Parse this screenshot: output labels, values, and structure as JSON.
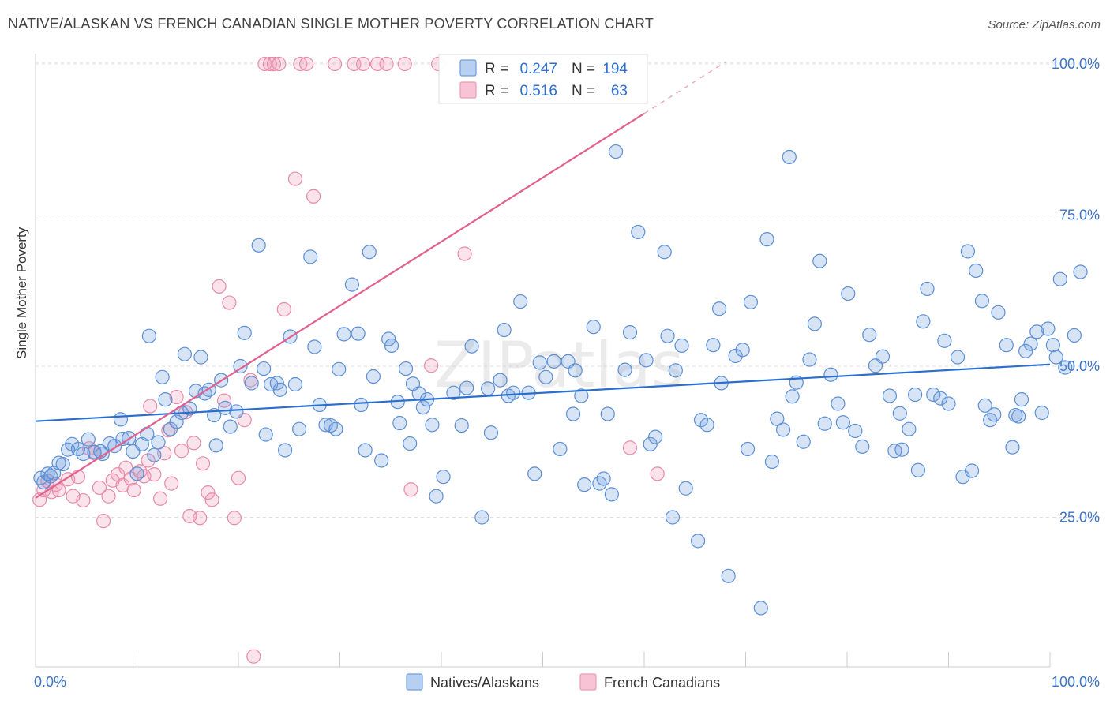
{
  "title": "NATIVE/ALASKAN VS FRENCH CANADIAN SINGLE MOTHER POVERTY CORRELATION CHART",
  "source": "Source: ZipAtlas.com",
  "watermark": "ZIPatlas",
  "chart_data": {
    "type": "scatter",
    "title": "NATIVE/ALASKAN VS FRENCH CANADIAN SINGLE MOTHER POVERTY CORRELATION CHART",
    "xlabel": "",
    "ylabel": "Single Mother Poverty",
    "xlim": [
      0,
      100
    ],
    "ylim": [
      0,
      100
    ],
    "x_tick_labels": [
      "0.0%",
      "100.0%"
    ],
    "y_ticks": [
      25,
      50,
      75,
      100
    ],
    "y_tick_labels": [
      "25.0%",
      "50.0%",
      "75.0%",
      "100.0%"
    ],
    "grid": true,
    "legend_position": "top-center",
    "colors": {
      "blue": "#6f9fdc",
      "blue_line": "#2a6fd0",
      "pink": "#ee9ab5",
      "pink_line": "#e0608e",
      "stat_value": "#2f6fd0"
    },
    "stats": [
      {
        "r_label": "R =",
        "r_value": "0.247",
        "n_label": "N =",
        "n_value": "194"
      },
      {
        "r_label": "R =",
        "r_value": "0.516",
        "n_label": "N =",
        "n_value": "63"
      }
    ],
    "series": [
      {
        "name": "Natives/Alaskans",
        "color": "#6f9fdc",
        "trend": {
          "x0": 0,
          "y0": 40.9,
          "x1": 100,
          "y1": 50.3
        },
        "points": [
          [
            0.5,
            31.5
          ],
          [
            0.8,
            30.8
          ],
          [
            1.2,
            32.2
          ],
          [
            1.5,
            31.8
          ],
          [
            1.8,
            32.3
          ],
          [
            2.3,
            34
          ],
          [
            2.7,
            33.8
          ],
          [
            3.2,
            36.2
          ],
          [
            3.6,
            37.1
          ],
          [
            4.2,
            36.3
          ],
          [
            4.7,
            35.5
          ],
          [
            5.2,
            37.9
          ],
          [
            5.8,
            35.8
          ],
          [
            6.4,
            35.9
          ],
          [
            6.6,
            35.5
          ],
          [
            7.3,
            37.2
          ],
          [
            7.8,
            36.8
          ],
          [
            8.4,
            41.2
          ],
          [
            8.6,
            38
          ],
          [
            9.2,
            38.1
          ],
          [
            9.6,
            35.9
          ],
          [
            10,
            32.2
          ],
          [
            10.5,
            37.1
          ],
          [
            11,
            38.8
          ],
          [
            11.2,
            55
          ],
          [
            11.7,
            35.3
          ],
          [
            12.1,
            37.4
          ],
          [
            12.5,
            48.2
          ],
          [
            12.8,
            44.5
          ],
          [
            13.3,
            39.6
          ],
          [
            13.9,
            40.8
          ],
          [
            14.4,
            42.3
          ],
          [
            14.7,
            52
          ],
          [
            15.2,
            43
          ],
          [
            15.8,
            45.9
          ],
          [
            16.3,
            51.5
          ],
          [
            16.7,
            45.5
          ],
          [
            17.1,
            46.1
          ],
          [
            17.6,
            41.9
          ],
          [
            17.8,
            36.9
          ],
          [
            18.3,
            47.7
          ],
          [
            18.7,
            43.1
          ],
          [
            19.2,
            40
          ],
          [
            19.8,
            42.5
          ],
          [
            20.2,
            50
          ],
          [
            20.6,
            55.5
          ],
          [
            21.3,
            47.2
          ],
          [
            22,
            70
          ],
          [
            22.5,
            49.6
          ],
          [
            22.7,
            38.7
          ],
          [
            23.2,
            47
          ],
          [
            23.8,
            47.2
          ],
          [
            24.1,
            46.1
          ],
          [
            24.6,
            36.1
          ],
          [
            25.1,
            54.9
          ],
          [
            25.6,
            47
          ],
          [
            26,
            39.6
          ],
          [
            27.1,
            68.1
          ],
          [
            27.5,
            53.2
          ],
          [
            28,
            43.6
          ],
          [
            28.6,
            40.3
          ],
          [
            29.1,
            40.2
          ],
          [
            29.6,
            39.6
          ],
          [
            29.9,
            49.5
          ],
          [
            30.4,
            55.3
          ],
          [
            31.2,
            63.5
          ],
          [
            31.8,
            55.4
          ],
          [
            32.1,
            43.6
          ],
          [
            32.5,
            36.1
          ],
          [
            32.9,
            68.9
          ],
          [
            33.3,
            48.3
          ],
          [
            34.1,
            34.4
          ],
          [
            34.8,
            54.5
          ],
          [
            35.1,
            53.4
          ],
          [
            35.7,
            44.1
          ],
          [
            35.9,
            40.6
          ],
          [
            36.5,
            49.6
          ],
          [
            36.9,
            37.2
          ],
          [
            37.2,
            47.1
          ],
          [
            37.8,
            45.5
          ],
          [
            38.2,
            43.2
          ],
          [
            38.6,
            44.5
          ],
          [
            39.1,
            40.3
          ],
          [
            39.5,
            28.5
          ],
          [
            40.2,
            31.7
          ],
          [
            41.2,
            45.6
          ],
          [
            42,
            40.2
          ],
          [
            42.5,
            46.4
          ],
          [
            43,
            53.3
          ],
          [
            44,
            25
          ],
          [
            44.6,
            46.3
          ],
          [
            44.9,
            39
          ],
          [
            45.8,
            47.7
          ],
          [
            46.2,
            56
          ],
          [
            46.6,
            45.1
          ],
          [
            47.1,
            45.6
          ],
          [
            47.8,
            60.7
          ],
          [
            48.6,
            45.6
          ],
          [
            49.2,
            32.2
          ],
          [
            49.7,
            50.6
          ],
          [
            50.3,
            48.2
          ],
          [
            51.1,
            50.8
          ],
          [
            51.7,
            36.3
          ],
          [
            52.5,
            50.8
          ],
          [
            53,
            42.1
          ],
          [
            53.2,
            49.3
          ],
          [
            53.8,
            45.1
          ],
          [
            54.1,
            30.4
          ],
          [
            55,
            56.5
          ],
          [
            55.6,
            30.6
          ],
          [
            56,
            31.4
          ],
          [
            56.4,
            42.1
          ],
          [
            56.8,
            28.8
          ],
          [
            57.2,
            85.5
          ],
          [
            58.1,
            49.4
          ],
          [
            58.6,
            55.6
          ],
          [
            59.4,
            72.2
          ],
          [
            60.2,
            51
          ],
          [
            60.6,
            37.1
          ],
          [
            61.1,
            38.3
          ],
          [
            62,
            68.9
          ],
          [
            62.3,
            55
          ],
          [
            62.8,
            25
          ],
          [
            63.1,
            49.3
          ],
          [
            63.7,
            53.4
          ],
          [
            64.1,
            29.8
          ],
          [
            65.3,
            21.1
          ],
          [
            65.6,
            41.1
          ],
          [
            66.2,
            40.3
          ],
          [
            66.8,
            53.5
          ],
          [
            67.4,
            59.5
          ],
          [
            67.6,
            47.2
          ],
          [
            68.3,
            15.3
          ],
          [
            69,
            51.7
          ],
          [
            69.7,
            52.7
          ],
          [
            70.2,
            36.3
          ],
          [
            70.5,
            60.6
          ],
          [
            71.5,
            10
          ],
          [
            72.1,
            71
          ],
          [
            72.6,
            34.2
          ],
          [
            73.1,
            41.3
          ],
          [
            73.7,
            39.5
          ],
          [
            74.3,
            84.6
          ],
          [
            74.6,
            45
          ],
          [
            75,
            47.3
          ],
          [
            75.7,
            37.5
          ],
          [
            76.3,
            51.1
          ],
          [
            76.8,
            57
          ],
          [
            77.3,
            67.4
          ],
          [
            77.8,
            40.5
          ],
          [
            78.4,
            48.6
          ],
          [
            79.1,
            43.8
          ],
          [
            79.6,
            40.7
          ],
          [
            80.1,
            62
          ],
          [
            80.8,
            39.3
          ],
          [
            81.5,
            36.7
          ],
          [
            82.2,
            55.2
          ],
          [
            82.8,
            50.1
          ],
          [
            83.5,
            51.6
          ],
          [
            84.2,
            45.1
          ],
          [
            84.7,
            36
          ],
          [
            85.2,
            42.2
          ],
          [
            85.4,
            36.2
          ],
          [
            86.1,
            39.6
          ],
          [
            86.7,
            45.3
          ],
          [
            87,
            32.8
          ],
          [
            87.5,
            57.4
          ],
          [
            87.9,
            62.8
          ],
          [
            88.5,
            45.3
          ],
          [
            89.2,
            44.7
          ],
          [
            89.6,
            54.2
          ],
          [
            90,
            43.8
          ],
          [
            90.9,
            51.5
          ],
          [
            91.4,
            31.7
          ],
          [
            91.9,
            69
          ],
          [
            92.3,
            32.7
          ],
          [
            92.7,
            65.8
          ],
          [
            93.3,
            60.8
          ],
          [
            93.6,
            43.5
          ],
          [
            94.1,
            41.1
          ],
          [
            94.5,
            42
          ],
          [
            94.9,
            58.9
          ],
          [
            95.7,
            53.5
          ],
          [
            96.3,
            36.6
          ],
          [
            96.6,
            41.9
          ],
          [
            96.9,
            41.7
          ],
          [
            97.2,
            44.5
          ],
          [
            97.6,
            52.5
          ],
          [
            98.1,
            53.7
          ],
          [
            98.7,
            55.7
          ],
          [
            99.2,
            42.3
          ],
          [
            99.8,
            56.2
          ],
          [
            100.3,
            53.5
          ],
          [
            100.6,
            51.5
          ],
          [
            101,
            64.4
          ],
          [
            101.5,
            49.8
          ],
          [
            102.4,
            55.1
          ],
          [
            103,
            65.6
          ]
        ]
      },
      {
        "name": "French Canadians",
        "color": "#ee9ab5",
        "trend": {
          "x0": 0,
          "y0": 28.2,
          "x1": 60,
          "y1": 91.8
        },
        "trend_dashed": {
          "x0": 60,
          "y0": 91.8,
          "x1": 68,
          "y1": 100.3
        },
        "points": [
          [
            0.4,
            27.9
          ],
          [
            0.8,
            29.5
          ],
          [
            1.2,
            31
          ],
          [
            1.6,
            29.2
          ],
          [
            2,
            30.4
          ],
          [
            2.3,
            29.5
          ],
          [
            3.2,
            31.3
          ],
          [
            3.7,
            28.5
          ],
          [
            4.2,
            31.7
          ],
          [
            4.7,
            27.8
          ],
          [
            5.3,
            36.4
          ],
          [
            5.8,
            35.6
          ],
          [
            6.3,
            29.9
          ],
          [
            6.7,
            24.4
          ],
          [
            7.2,
            28.5
          ],
          [
            7.6,
            31.1
          ],
          [
            8.1,
            32.1
          ],
          [
            8.6,
            30.3
          ],
          [
            8.9,
            33.2
          ],
          [
            9.4,
            31.4
          ],
          [
            9.7,
            29.5
          ],
          [
            10.3,
            32.6
          ],
          [
            10.7,
            31.8
          ],
          [
            11.1,
            34.4
          ],
          [
            11.3,
            43.4
          ],
          [
            11.7,
            32.1
          ],
          [
            12.3,
            28.1
          ],
          [
            12.7,
            35.6
          ],
          [
            13.1,
            39.4
          ],
          [
            13.4,
            30.6
          ],
          [
            13.9,
            44.9
          ],
          [
            14.4,
            36
          ],
          [
            14.8,
            42.4
          ],
          [
            15.2,
            25.2
          ],
          [
            15.6,
            37.3
          ],
          [
            16.2,
            24.9
          ],
          [
            16.5,
            33.9
          ],
          [
            17,
            29.1
          ],
          [
            17.4,
            27.9
          ],
          [
            18.1,
            63.2
          ],
          [
            18.6,
            44.3
          ],
          [
            19.1,
            60.5
          ],
          [
            19.6,
            24.9
          ],
          [
            20,
            31.5
          ],
          [
            20.6,
            41.1
          ],
          [
            21.2,
            47.7
          ],
          [
            21.5,
            2
          ],
          [
            22.6,
            100
          ],
          [
            23.1,
            100
          ],
          [
            23.5,
            100
          ],
          [
            24,
            100
          ],
          [
            24.5,
            59.4
          ],
          [
            25.6,
            81
          ],
          [
            26.1,
            100
          ],
          [
            26.7,
            100
          ],
          [
            27.4,
            78.1
          ],
          [
            29.5,
            100
          ],
          [
            31.4,
            100
          ],
          [
            32.3,
            100
          ],
          [
            33.7,
            100
          ],
          [
            34.6,
            100
          ],
          [
            36.4,
            100
          ],
          [
            37,
            29.6
          ],
          [
            39,
            50.1
          ],
          [
            39.7,
            100
          ],
          [
            42.3,
            68.6
          ],
          [
            58.6,
            36.5
          ],
          [
            61.3,
            32.2
          ]
        ]
      }
    ]
  },
  "legend": {
    "items": [
      "Natives/Alaskans",
      "French Canadians"
    ]
  },
  "axes": {
    "x_left": "0.0%",
    "x_right": "100.0%"
  }
}
